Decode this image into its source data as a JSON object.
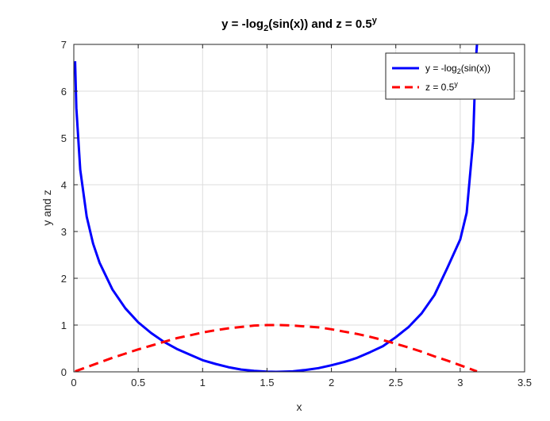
{
  "chart_data": {
    "type": "line",
    "title": {
      "prefix": "y = -log",
      "sub": "2",
      "middle": "(sin(x)) and z = 0.5",
      "sup": "y"
    },
    "xlabel": "x",
    "ylabel": "y and z",
    "xlim": [
      0,
      3.5
    ],
    "ylim": [
      0,
      7
    ],
    "xticks": [
      0,
      0.5,
      1,
      1.5,
      2,
      2.5,
      3,
      3.5
    ],
    "yticks": [
      0,
      1,
      2,
      3,
      4,
      5,
      6,
      7
    ],
    "xtick_labels": [
      "0",
      "0.5",
      "1",
      "1.5",
      "2",
      "2.5",
      "3",
      "3.5"
    ],
    "ytick_labels": [
      "0",
      "1",
      "2",
      "3",
      "4",
      "5",
      "6",
      "7"
    ],
    "grid": true,
    "legend_position": "top-right",
    "series": [
      {
        "key": "y",
        "legend": {
          "prefix": "y = -log",
          "sub": "2",
          "suffix": "(sin(x))"
        },
        "color": "#0000ff",
        "style": "solid",
        "x": [
          0.01,
          0.02,
          0.05,
          0.1,
          0.15,
          0.2,
          0.3,
          0.4,
          0.5,
          0.6,
          0.7,
          0.8,
          0.9,
          1.0,
          1.1,
          1.2,
          1.3,
          1.4,
          1.5,
          1.5708,
          1.6,
          1.7,
          1.8,
          1.9,
          2.0,
          2.1,
          2.2,
          2.3,
          2.4,
          2.5,
          2.6,
          2.7,
          2.8,
          2.9,
          3.0,
          3.05,
          3.1,
          3.12,
          3.13
        ],
        "values": [
          6.64,
          5.64,
          4.32,
          3.32,
          2.74,
          2.33,
          1.76,
          1.36,
          1.06,
          0.83,
          0.64,
          0.49,
          0.37,
          0.25,
          0.17,
          0.1,
          0.05,
          0.02,
          0.004,
          0.0,
          0.001,
          0.01,
          0.04,
          0.08,
          0.14,
          0.21,
          0.3,
          0.42,
          0.55,
          0.74,
          0.96,
          1.25,
          1.64,
          2.22,
          2.83,
          3.4,
          4.93,
          6.6,
          7.0
        ]
      },
      {
        "key": "z",
        "legend": {
          "prefix": "z = 0.5",
          "sup": "y"
        },
        "color": "#ff0000",
        "style": "dashed",
        "x": [
          0.01,
          0.05,
          0.1,
          0.2,
          0.3,
          0.4,
          0.5,
          0.6,
          0.7,
          0.8,
          0.9,
          1.0,
          1.1,
          1.2,
          1.3,
          1.4,
          1.5,
          1.5708,
          1.6,
          1.7,
          1.8,
          1.9,
          2.0,
          2.1,
          2.2,
          2.3,
          2.4,
          2.5,
          2.6,
          2.7,
          2.8,
          2.9,
          3.0,
          3.1,
          3.13
        ],
        "values": [
          0.01,
          0.05,
          0.1,
          0.2,
          0.3,
          0.39,
          0.48,
          0.56,
          0.64,
          0.72,
          0.78,
          0.84,
          0.89,
          0.93,
          0.96,
          0.99,
          1.0,
          1.0,
          1.0,
          0.99,
          0.97,
          0.95,
          0.91,
          0.86,
          0.81,
          0.75,
          0.68,
          0.6,
          0.52,
          0.43,
          0.33,
          0.24,
          0.14,
          0.04,
          0.01
        ]
      }
    ]
  }
}
